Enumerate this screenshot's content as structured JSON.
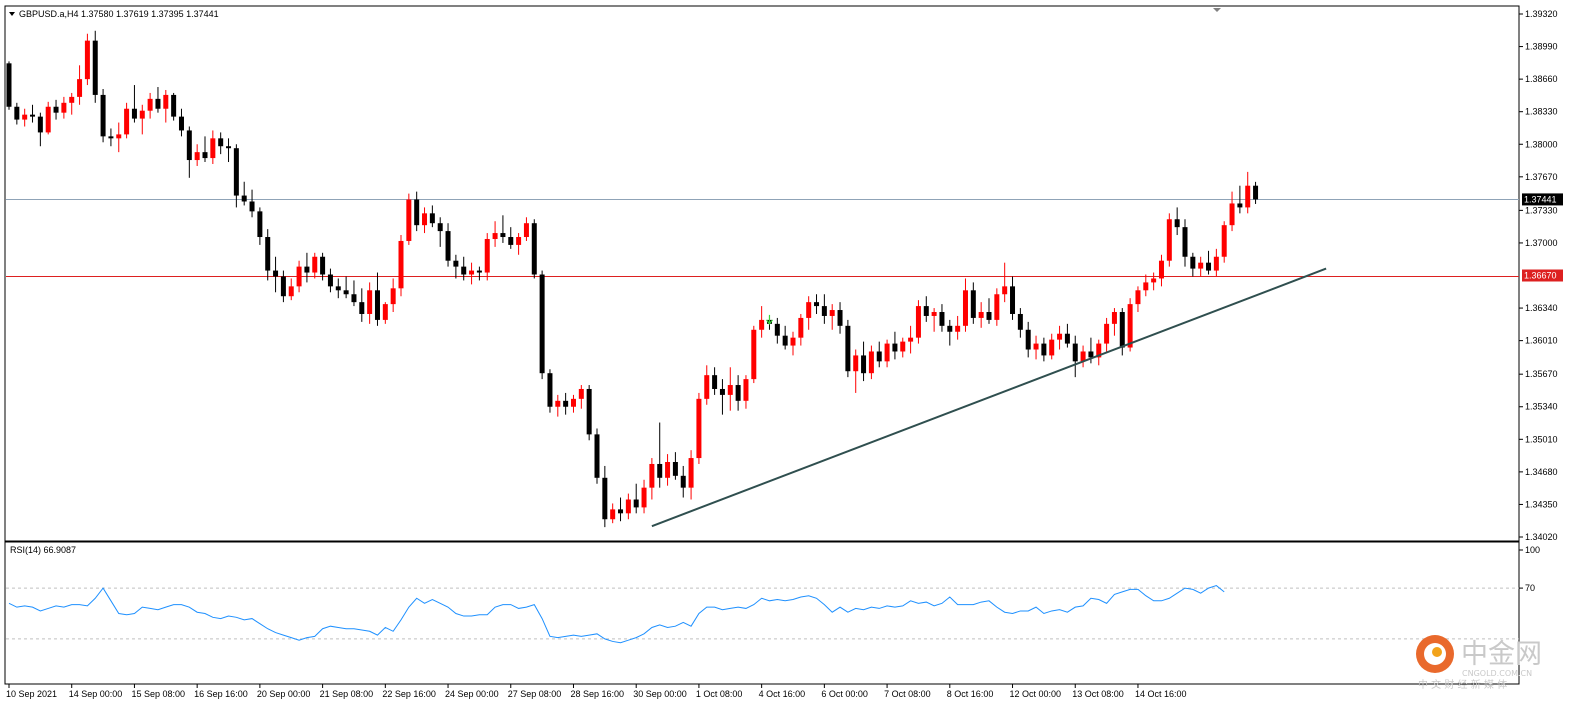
{
  "header": {
    "symbol_line": "GBPUSD.a,H4  1.37580 1.37619 1.37395 1.37441"
  },
  "rsi_panel": {
    "title": "RSI(14) 66.9087"
  },
  "watermark": {
    "brand": "中金网",
    "site": "CNGOLD.COM.CN",
    "tagline": "中 文 财 经 新 媒 体"
  },
  "colors": {
    "bull": "#ff0000",
    "bear": "#000000",
    "current_price_line": "#8fa3b7",
    "support_line": "#dd2020",
    "trendline": "#2f4f4f",
    "rsi_line": "#1e90ff",
    "grid_dotted": "#c0c0c0",
    "arrow_marker": "#3ad33a"
  },
  "chart_data": [
    {
      "type": "candlestick",
      "symbol": "GBPUSD.a",
      "timeframe": "H4",
      "last": {
        "open": 1.3758,
        "high": 1.37619,
        "low": 1.37395,
        "close": 1.37441
      },
      "ylim": [
        1.3402,
        1.3932
      ],
      "y_ticks": [
        "1.39320",
        "1.38990",
        "1.38660",
        "1.38330",
        "1.38000",
        "1.37670",
        "1.37330",
        "1.37000",
        "1.36340",
        "1.36010",
        "1.35670",
        "1.35340",
        "1.35010",
        "1.34680",
        "1.34350",
        "1.34020"
      ],
      "x_ticks": [
        {
          "index": 0,
          "label": "10 Sep 2021"
        },
        {
          "index": 8,
          "label": "14 Sep 00:00"
        },
        {
          "index": 16,
          "label": "15 Sep 08:00"
        },
        {
          "index": 24,
          "label": "16 Sep 16:00"
        },
        {
          "index": 32,
          "label": "20 Sep 00:00"
        },
        {
          "index": 40,
          "label": "21 Sep 08:00"
        },
        {
          "index": 48,
          "label": "22 Sep 16:00"
        },
        {
          "index": 56,
          "label": "24 Sep 00:00"
        },
        {
          "index": 64,
          "label": "27 Sep 08:00"
        },
        {
          "index": 72,
          "label": "28 Sep 16:00"
        },
        {
          "index": 80,
          "label": "30 Sep 00:00"
        },
        {
          "index": 88,
          "label": "1 Oct 08:00"
        },
        {
          "index": 96,
          "label": "4 Oct 16:00"
        },
        {
          "index": 104,
          "label": "6 Oct 00:00"
        },
        {
          "index": 112,
          "label": "7 Oct 08:00"
        },
        {
          "index": 120,
          "label": "8 Oct 16:00"
        },
        {
          "index": 128,
          "label": "12 Oct 00:00"
        },
        {
          "index": 136,
          "label": "13 Oct 08:00"
        },
        {
          "index": 144,
          "label": "14 Oct 16:00"
        }
      ],
      "horizontal_lines": [
        {
          "name": "current-price",
          "price": 1.37441,
          "label": "1.37441"
        },
        {
          "name": "support",
          "price": 1.3667,
          "label": "1.36670"
        }
      ],
      "trendline": {
        "from": {
          "index": 82,
          "price": 1.3413
        },
        "to": {
          "index": 168,
          "price": 1.3674
        }
      },
      "arrow_marker": {
        "index": 97,
        "price": 1.3621,
        "direction": "down"
      },
      "candles": [
        [
          1.3882,
          1.3884,
          1.3835,
          1.3838
        ],
        [
          1.3838,
          1.3842,
          1.382,
          1.3825
        ],
        [
          1.3825,
          1.3836,
          1.3818,
          1.383
        ],
        [
          1.383,
          1.384,
          1.3822,
          1.3828
        ],
        [
          1.3828,
          1.3832,
          1.3798,
          1.3812
        ],
        [
          1.3812,
          1.3843,
          1.381,
          1.3838
        ],
        [
          1.3838,
          1.3845,
          1.3825,
          1.3832
        ],
        [
          1.3832,
          1.3848,
          1.3826,
          1.3842
        ],
        [
          1.3842,
          1.3852,
          1.383,
          1.3848
        ],
        [
          1.3848,
          1.388,
          1.384,
          1.3866
        ],
        [
          1.3866,
          1.3912,
          1.386,
          1.3905
        ],
        [
          1.3905,
          1.3915,
          1.3842,
          1.385
        ],
        [
          1.385,
          1.3856,
          1.3802,
          1.3808
        ],
        [
          1.3808,
          1.3816,
          1.3798,
          1.3806
        ],
        [
          1.3806,
          1.3822,
          1.3792,
          1.381
        ],
        [
          1.381,
          1.3842,
          1.3806,
          1.3836
        ],
        [
          1.3836,
          1.386,
          1.3822,
          1.3826
        ],
        [
          1.3826,
          1.384,
          1.381,
          1.3834
        ],
        [
          1.3834,
          1.3852,
          1.3826,
          1.3846
        ],
        [
          1.3846,
          1.3858,
          1.3832,
          1.3836
        ],
        [
          1.3836,
          1.3855,
          1.3822,
          1.385
        ],
        [
          1.385,
          1.3852,
          1.3824,
          1.3828
        ],
        [
          1.3828,
          1.3836,
          1.3808,
          1.3814
        ],
        [
          1.3814,
          1.3818,
          1.3766,
          1.3784
        ],
        [
          1.3784,
          1.38,
          1.3778,
          1.3792
        ],
        [
          1.3792,
          1.3808,
          1.3782,
          1.3786
        ],
        [
          1.3786,
          1.3814,
          1.378,
          1.3806
        ],
        [
          1.3806,
          1.3812,
          1.379,
          1.3798
        ],
        [
          1.3798,
          1.3806,
          1.3782,
          1.3796
        ],
        [
          1.3796,
          1.38,
          1.3736,
          1.3748
        ],
        [
          1.3748,
          1.3762,
          1.3738,
          1.3742
        ],
        [
          1.3742,
          1.3754,
          1.3726,
          1.3732
        ],
        [
          1.3732,
          1.3736,
          1.3698,
          1.3706
        ],
        [
          1.3706,
          1.3714,
          1.3662,
          1.3672
        ],
        [
          1.3672,
          1.3686,
          1.365,
          1.3666
        ],
        [
          1.3666,
          1.3672,
          1.364,
          1.3646
        ],
        [
          1.3646,
          1.3664,
          1.3642,
          1.3656
        ],
        [
          1.3656,
          1.3682,
          1.365,
          1.3676
        ],
        [
          1.3676,
          1.369,
          1.366,
          1.367
        ],
        [
          1.367,
          1.369,
          1.3664,
          1.3686
        ],
        [
          1.3686,
          1.369,
          1.3662,
          1.3668
        ],
        [
          1.3668,
          1.3674,
          1.365,
          1.3656
        ],
        [
          1.3656,
          1.3664,
          1.3644,
          1.3652
        ],
        [
          1.3652,
          1.3666,
          1.3644,
          1.3648
        ],
        [
          1.3648,
          1.3662,
          1.3636,
          1.364
        ],
        [
          1.364,
          1.3654,
          1.362,
          1.3628
        ],
        [
          1.3628,
          1.366,
          1.3618,
          1.3652
        ],
        [
          1.3652,
          1.367,
          1.3616,
          1.3622
        ],
        [
          1.3622,
          1.364,
          1.3618,
          1.3638
        ],
        [
          1.3638,
          1.3664,
          1.363,
          1.3654
        ],
        [
          1.3654,
          1.3708,
          1.3646,
          1.3702
        ],
        [
          1.3702,
          1.375,
          1.3698,
          1.3744
        ],
        [
          1.3744,
          1.3752,
          1.3712,
          1.3718
        ],
        [
          1.3718,
          1.3736,
          1.371,
          1.373
        ],
        [
          1.373,
          1.3738,
          1.3716,
          1.372
        ],
        [
          1.372,
          1.3726,
          1.3696,
          1.3712
        ],
        [
          1.3712,
          1.372,
          1.3676,
          1.3682
        ],
        [
          1.3682,
          1.3688,
          1.3664,
          1.3676
        ],
        [
          1.3676,
          1.3686,
          1.3662,
          1.3668
        ],
        [
          1.3668,
          1.368,
          1.3658,
          1.3672
        ],
        [
          1.3672,
          1.3676,
          1.3662,
          1.367
        ],
        [
          1.367,
          1.371,
          1.3662,
          1.3704
        ],
        [
          1.3704,
          1.3722,
          1.3696,
          1.371
        ],
        [
          1.371,
          1.3728,
          1.37,
          1.3706
        ],
        [
          1.3706,
          1.3716,
          1.3694,
          1.3698
        ],
        [
          1.3698,
          1.371,
          1.3688,
          1.3706
        ],
        [
          1.3706,
          1.3726,
          1.3702,
          1.372
        ],
        [
          1.372,
          1.3724,
          1.3664,
          1.3668
        ],
        [
          1.3668,
          1.3672,
          1.3562,
          1.3568
        ],
        [
          1.3568,
          1.3572,
          1.3528,
          1.3534
        ],
        [
          1.3534,
          1.3546,
          1.3524,
          1.354
        ],
        [
          1.354,
          1.3548,
          1.3526,
          1.3534
        ],
        [
          1.3534,
          1.3546,
          1.3528,
          1.3542
        ],
        [
          1.3542,
          1.3556,
          1.3532,
          1.3552
        ],
        [
          1.3552,
          1.3556,
          1.35,
          1.3506
        ],
        [
          1.3506,
          1.3512,
          1.3456,
          1.3462
        ],
        [
          1.3462,
          1.3474,
          1.3412,
          1.342
        ],
        [
          1.342,
          1.3436,
          1.3416,
          1.343
        ],
        [
          1.343,
          1.3442,
          1.3418,
          1.3426
        ],
        [
          1.3426,
          1.3446,
          1.342,
          1.344
        ],
        [
          1.344,
          1.3456,
          1.3426,
          1.3432
        ],
        [
          1.3432,
          1.346,
          1.3426,
          1.3452
        ],
        [
          1.3452,
          1.3482,
          1.344,
          1.3476
        ],
        [
          1.3476,
          1.3518,
          1.3452,
          1.3462
        ],
        [
          1.3462,
          1.3486,
          1.3454,
          1.3478
        ],
        [
          1.3478,
          1.3488,
          1.346,
          1.3464
        ],
        [
          1.3464,
          1.3474,
          1.3442,
          1.3452
        ],
        [
          1.3452,
          1.349,
          1.344,
          1.3482
        ],
        [
          1.3482,
          1.3548,
          1.3476,
          1.3542
        ],
        [
          1.3542,
          1.3576,
          1.3536,
          1.3566
        ],
        [
          1.3566,
          1.3574,
          1.3546,
          1.3552
        ],
        [
          1.3552,
          1.3562,
          1.3526,
          1.3546
        ],
        [
          1.3546,
          1.3574,
          1.353,
          1.3556
        ],
        [
          1.3556,
          1.3566,
          1.353,
          1.354
        ],
        [
          1.354,
          1.3566,
          1.3532,
          1.3562
        ],
        [
          1.3562,
          1.3616,
          1.3558,
          1.3612
        ],
        [
          1.3612,
          1.3636,
          1.3604,
          1.3622
        ],
        [
          1.3622,
          1.3626,
          1.3612,
          1.3618
        ],
        [
          1.3618,
          1.3624,
          1.3598,
          1.3606
        ],
        [
          1.3606,
          1.3616,
          1.3592,
          1.3596
        ],
        [
          1.3596,
          1.361,
          1.3586,
          1.3604
        ],
        [
          1.3604,
          1.3628,
          1.3596,
          1.3624
        ],
        [
          1.3624,
          1.3646,
          1.3612,
          1.364
        ],
        [
          1.364,
          1.3648,
          1.3628,
          1.3636
        ],
        [
          1.3636,
          1.3648,
          1.3618,
          1.3626
        ],
        [
          1.3626,
          1.3638,
          1.3612,
          1.3632
        ],
        [
          1.3632,
          1.364,
          1.3608,
          1.3616
        ],
        [
          1.3616,
          1.3622,
          1.3564,
          1.357
        ],
        [
          1.357,
          1.3592,
          1.3548,
          1.3586
        ],
        [
          1.3586,
          1.36,
          1.356,
          1.3568
        ],
        [
          1.3568,
          1.3596,
          1.3562,
          1.359
        ],
        [
          1.359,
          1.36,
          1.3574,
          1.358
        ],
        [
          1.358,
          1.3602,
          1.3574,
          1.3598
        ],
        [
          1.3598,
          1.361,
          1.3582,
          1.359
        ],
        [
          1.359,
          1.3604,
          1.3584,
          1.36
        ],
        [
          1.36,
          1.3616,
          1.3588,
          1.3604
        ],
        [
          1.3604,
          1.3642,
          1.3598,
          1.3636
        ],
        [
          1.3636,
          1.3646,
          1.362,
          1.3626
        ],
        [
          1.3626,
          1.3634,
          1.361,
          1.363
        ],
        [
          1.363,
          1.3638,
          1.361,
          1.3616
        ],
        [
          1.3616,
          1.3622,
          1.3596,
          1.361
        ],
        [
          1.361,
          1.3626,
          1.3602,
          1.3616
        ],
        [
          1.3616,
          1.3664,
          1.361,
          1.3652
        ],
        [
          1.3652,
          1.366,
          1.3618,
          1.3624
        ],
        [
          1.3624,
          1.364,
          1.3614,
          1.363
        ],
        [
          1.363,
          1.3644,
          1.3618,
          1.3622
        ],
        [
          1.3622,
          1.3654,
          1.3616,
          1.3648
        ],
        [
          1.3648,
          1.368,
          1.364,
          1.3656
        ],
        [
          1.3656,
          1.3666,
          1.3622,
          1.3628
        ],
        [
          1.3628,
          1.3634,
          1.3604,
          1.3612
        ],
        [
          1.3612,
          1.362,
          1.3584,
          1.3592
        ],
        [
          1.3592,
          1.3606,
          1.3582,
          1.3598
        ],
        [
          1.3598,
          1.3604,
          1.358,
          1.3586
        ],
        [
          1.3586,
          1.3608,
          1.3582,
          1.3602
        ],
        [
          1.3602,
          1.3616,
          1.3592,
          1.3608
        ],
        [
          1.3608,
          1.3618,
          1.3594,
          1.3598
        ],
        [
          1.3598,
          1.3606,
          1.3564,
          1.358
        ],
        [
          1.358,
          1.3596,
          1.3574,
          1.359
        ],
        [
          1.359,
          1.3604,
          1.3578,
          1.3584
        ],
        [
          1.3584,
          1.3602,
          1.3576,
          1.3598
        ],
        [
          1.3598,
          1.3624,
          1.359,
          1.3618
        ],
        [
          1.3618,
          1.3634,
          1.3606,
          1.363
        ],
        [
          1.363,
          1.3634,
          1.3586,
          1.3594
        ],
        [
          1.3594,
          1.3644,
          1.359,
          1.3638
        ],
        [
          1.3638,
          1.3656,
          1.363,
          1.3652
        ],
        [
          1.3652,
          1.3668,
          1.3646,
          1.366
        ],
        [
          1.366,
          1.367,
          1.3652,
          1.3664
        ],
        [
          1.3664,
          1.3688,
          1.3656,
          1.3682
        ],
        [
          1.3682,
          1.373,
          1.3676,
          1.3724
        ],
        [
          1.3724,
          1.3736,
          1.3708,
          1.3716
        ],
        [
          1.3716,
          1.3724,
          1.3676,
          1.3686
        ],
        [
          1.3686,
          1.369,
          1.3666,
          1.3674
        ],
        [
          1.3674,
          1.3686,
          1.3666,
          1.368
        ],
        [
          1.368,
          1.3692,
          1.3668,
          1.3672
        ],
        [
          1.3672,
          1.3694,
          1.3666,
          1.3686
        ],
        [
          1.3686,
          1.3722,
          1.368,
          1.3718
        ],
        [
          1.3718,
          1.3752,
          1.3712,
          1.374
        ],
        [
          1.374,
          1.3758,
          1.373,
          1.3736
        ],
        [
          1.3736,
          1.3772,
          1.373,
          1.3758
        ],
        [
          1.3758,
          1.37619,
          1.37395,
          1.37441
        ]
      ]
    },
    {
      "type": "line",
      "name": "RSI(14)",
      "value": 66.9087,
      "ylim": [
        0,
        100
      ],
      "y_ticks": [
        "100",
        "70"
      ],
      "levels": [
        70,
        30
      ],
      "values": [
        58,
        55,
        56,
        55,
        52,
        54,
        56,
        55,
        57,
        57,
        56,
        62,
        70,
        60,
        50,
        49,
        50,
        55,
        54,
        53,
        55,
        57,
        57,
        55,
        51,
        50,
        47,
        46,
        48,
        47,
        45,
        46,
        42,
        38,
        35,
        33,
        31,
        29,
        31,
        32,
        38,
        40,
        39,
        38,
        38,
        37,
        36,
        33,
        39,
        36,
        45,
        55,
        62,
        58,
        61,
        58,
        55,
        50,
        48,
        48,
        49,
        49,
        55,
        57,
        57,
        54,
        55,
        57,
        46,
        32,
        31,
        32,
        33,
        32,
        33,
        34,
        30,
        28,
        27,
        29,
        31,
        34,
        39,
        41,
        39,
        40,
        43,
        40,
        50,
        55,
        55,
        53,
        54,
        55,
        54,
        57,
        62,
        60,
        61,
        60,
        61,
        63,
        64,
        62,
        57,
        51,
        55,
        51,
        54,
        53,
        55,
        54,
        56,
        55,
        56,
        60,
        58,
        59,
        56,
        58,
        63,
        57,
        57,
        57,
        59,
        60,
        55,
        51,
        50,
        52,
        52,
        55,
        50,
        52,
        53,
        51,
        55,
        56,
        62,
        61,
        58,
        65,
        67,
        69,
        69,
        64,
        60,
        60,
        62,
        66,
        70,
        69,
        66,
        70,
        72,
        67
      ]
    }
  ]
}
